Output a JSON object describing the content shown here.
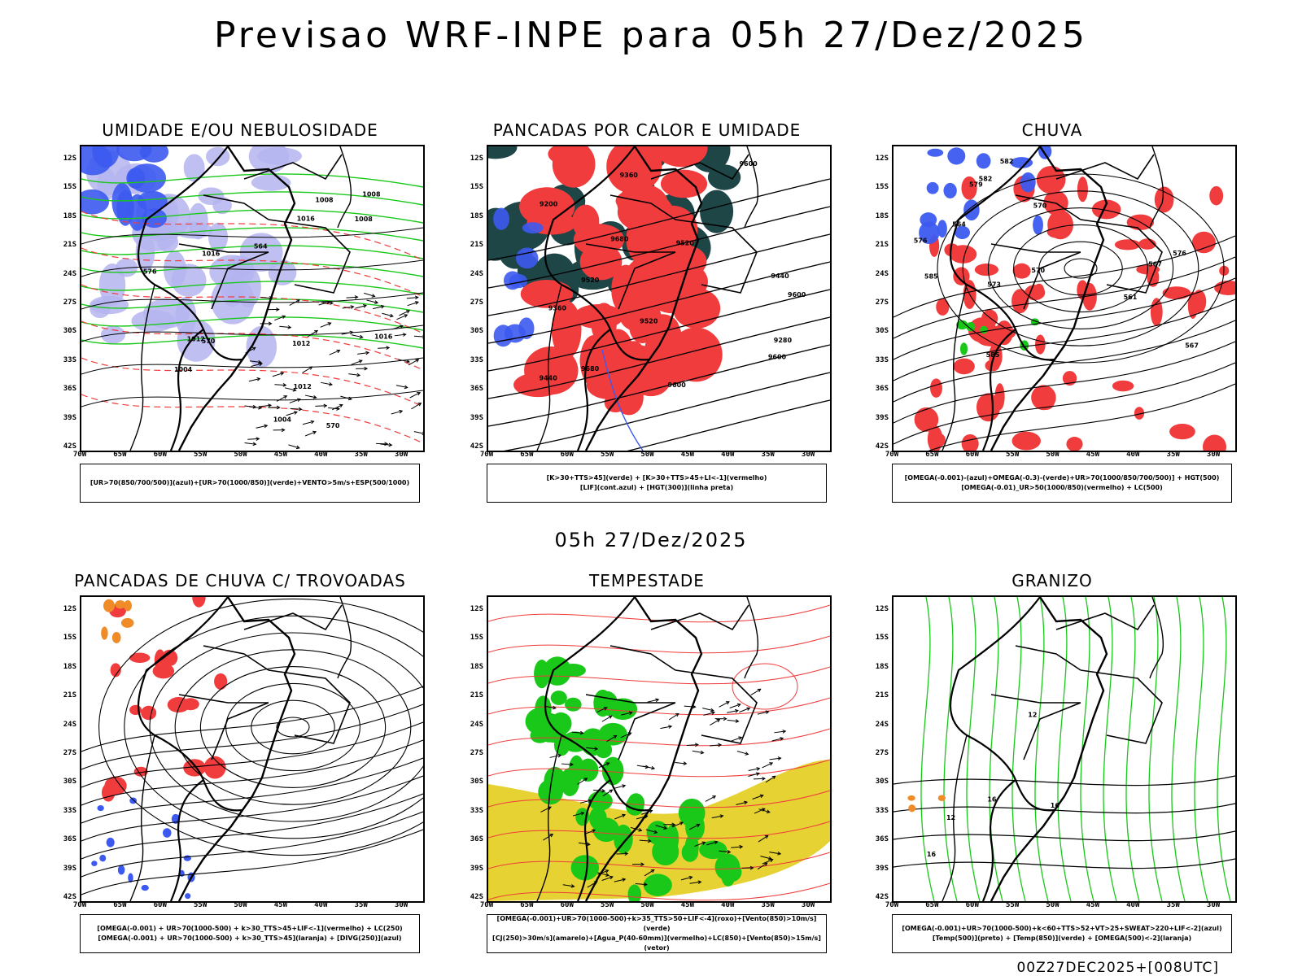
{
  "title": "Previsao WRF-INPE  para 05h 27/Dez/2025",
  "mid_title": "05h 27/Dez/2025",
  "footer": "00Z27DEC2025+[008UTC]",
  "lat_labels": [
    "12S",
    "15S",
    "18S",
    "21S",
    "24S",
    "27S",
    "30S",
    "33S",
    "36S",
    "39S",
    "42S"
  ],
  "lon_labels": [
    "70W",
    "65W",
    "60W",
    "55W",
    "50W",
    "45W",
    "40W",
    "35W",
    "30W"
  ],
  "colors": {
    "green": "#19c819",
    "red": "#f03c3c",
    "blue": "#3c5af0",
    "lavender": "#b4b4f0",
    "darkteal": "#1e4646",
    "yellow": "#e6d232",
    "orange": "#f08c28"
  },
  "panels": [
    {
      "title": "UMIDADE E/OU NEBULOSIDADE",
      "legend": [
        "[UR>70(850/700/500)](azul)+[UR>70(1000/850)](verde)+VENTO>5m/s+ESP(500/1000)"
      ],
      "contour_labels": [
        "1012",
        "1012",
        "1016",
        "1012",
        "1008",
        "1004",
        "1008",
        "1008",
        "1016",
        "1016",
        "1004",
        "564",
        "570",
        "570",
        "576"
      ]
    },
    {
      "title": "PANCADAS POR CALOR E UMIDADE",
      "legend": [
        "[K>30+TTS>45](verde) + [K>30+TTS>45+LI<-1](vermelho)",
        "[LIF](cont.azul) + [HGT(300)](linha preta)"
      ],
      "contour_labels": [
        "9600",
        "9600",
        "9680",
        "9520",
        "9520",
        "9600",
        "9680",
        "9600",
        "9440",
        "9520",
        "9440",
        "9360",
        "9280",
        "9200",
        "9360"
      ]
    },
    {
      "title": "CHUVA",
      "legend": [
        "[OMEGA(-0.001)-(azul)+OMEGA(-0.3)-(verde)+UR>70(1000/850/700/500)] + HGT(500)",
        "[OMEGA(-0.01)_UR>50(1000/850)(vermelho) + LC(500)"
      ],
      "contour_labels": [
        "585",
        "585",
        "582",
        "576",
        "579",
        "582",
        "570",
        "576",
        "573",
        "564",
        "567",
        "561",
        "570",
        "567"
      ]
    },
    {
      "title": "PANCADAS DE CHUVA C/ TROVOADAS",
      "legend": [
        "[OMEGA(-0.001) + UR>70(1000-500) + k>30_TTS>45+LIF<-1](vermelho) + LC(250)",
        "[OMEGA(-0.001) + UR>70(1000-500) + k>30_TTS>45](laranja) + [DIVG(250)](azul)"
      ],
      "contour_labels": []
    },
    {
      "title": "TEMPESTADE",
      "legend": [
        "[OMEGA(-0.001)+UR>70(1000-500)+k>35_TTS>50+LIF<-4](roxo)+[Vento(850)>10m/s](verde)",
        "[CJ(250)>30m/s](amarelo)+[Agua_P(40-60mm)](vermelho)+LC(850)+[Vento(850)>15m/s](vetor)"
      ],
      "contour_labels": []
    },
    {
      "title": "GRANIZO",
      "legend": [
        "[OMEGA(-0.001)+UR>70(1000-500)+k<60+TTS>52+VT>25+SWEAT>220+LIF<-2](azul)",
        "[Temp(500)](preto) + [Temp(850)](verde) + [OMEGA(500)<-2](laranja)"
      ],
      "contour_labels": [
        "12",
        "12",
        "16",
        "16",
        "16"
      ]
    }
  ]
}
